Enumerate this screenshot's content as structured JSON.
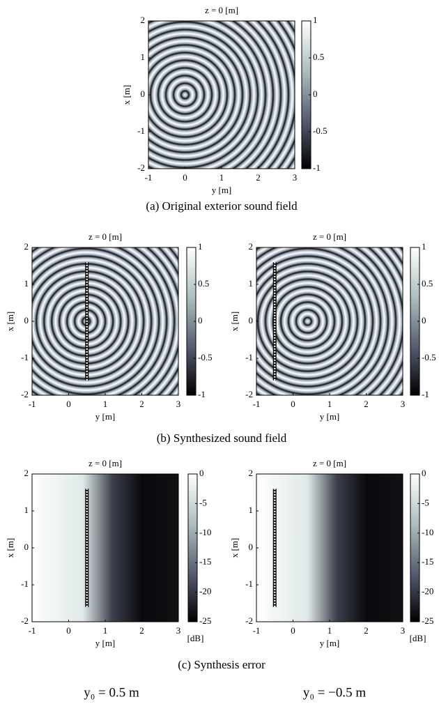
{
  "chart_data": [
    {
      "type": "heatmap",
      "title": "z = 0 [m]",
      "xlabel": "y [m]",
      "ylabel": "x [m]",
      "xlim": [
        -1,
        3
      ],
      "ylim": [
        -2,
        2
      ],
      "xticks": [
        -1,
        0,
        1,
        2,
        3
      ],
      "yticks": [
        -2,
        -1,
        0,
        1,
        2
      ],
      "colorbar": {
        "lim": [
          -1,
          1
        ],
        "ticks": [
          -1,
          -0.5,
          0,
          0.5,
          1
        ]
      }
    },
    {
      "type": "heatmap",
      "title": "z = 0 [m]",
      "xlabel": "y [m]",
      "ylabel": "x [m]",
      "xlim": [
        -1,
        3
      ],
      "ylim": [
        -2,
        2
      ],
      "xticks": [
        -1,
        0,
        1,
        2,
        3
      ],
      "yticks": [
        -2,
        -1,
        0,
        1,
        2
      ],
      "colorbar": {
        "lim": [
          -1,
          1
        ],
        "ticks": [
          -1,
          -0.5,
          0,
          0.5,
          1
        ]
      },
      "array": {
        "y": 0.5,
        "x": [
          -1.6,
          1.6
        ]
      }
    },
    {
      "type": "heatmap",
      "title": "z = 0 [m]",
      "xlabel": "y [m]",
      "ylabel": "x [m]",
      "xlim": [
        -1,
        3
      ],
      "ylim": [
        -2,
        2
      ],
      "xticks": [
        -1,
        0,
        1,
        2,
        3
      ],
      "yticks": [
        -2,
        -1,
        0,
        1,
        2
      ],
      "colorbar": {
        "lim": [
          -1,
          1
        ],
        "ticks": [
          -1,
          -0.5,
          0,
          0.5,
          1
        ]
      },
      "array": {
        "y": -0.5,
        "x": [
          -1.6,
          1.6
        ]
      }
    },
    {
      "type": "heatmap",
      "title": "z = 0 [m]",
      "xlabel": "y [m]",
      "ylabel": "x [m]",
      "xlim": [
        -1,
        3
      ],
      "ylim": [
        -2,
        2
      ],
      "xticks": [
        -1,
        0,
        1,
        2,
        3
      ],
      "yticks": [
        -2,
        -1,
        0,
        1,
        2
      ],
      "colorbar": {
        "lim": [
          -25,
          0
        ],
        "ticks": [
          -25,
          -20,
          -15,
          -10,
          -5,
          0
        ],
        "label": "[dB]"
      },
      "array": {
        "y": 0.5,
        "x": [
          -1.6,
          1.6
        ]
      }
    },
    {
      "type": "heatmap",
      "title": "z = 0 [m]",
      "xlabel": "y [m]",
      "ylabel": "x [m]",
      "xlim": [
        -1,
        3
      ],
      "ylim": [
        -2,
        2
      ],
      "xticks": [
        -1,
        0,
        1,
        2,
        3
      ],
      "yticks": [
        -2,
        -1,
        0,
        1,
        2
      ],
      "colorbar": {
        "lim": [
          -25,
          0
        ],
        "ticks": [
          -25,
          -20,
          -15,
          -10,
          -5,
          0
        ],
        "label": "[dB]"
      },
      "array": {
        "y": -0.5,
        "x": [
          -1.6,
          1.6
        ]
      }
    }
  ],
  "captions": [
    "(a) Original exterior sound field",
    "(b) Synthesized sound field",
    "(c) Synthesis error"
  ],
  "column_labels": [
    "y₀ = 0.5 m",
    "y₀ = −0.5 m"
  ]
}
